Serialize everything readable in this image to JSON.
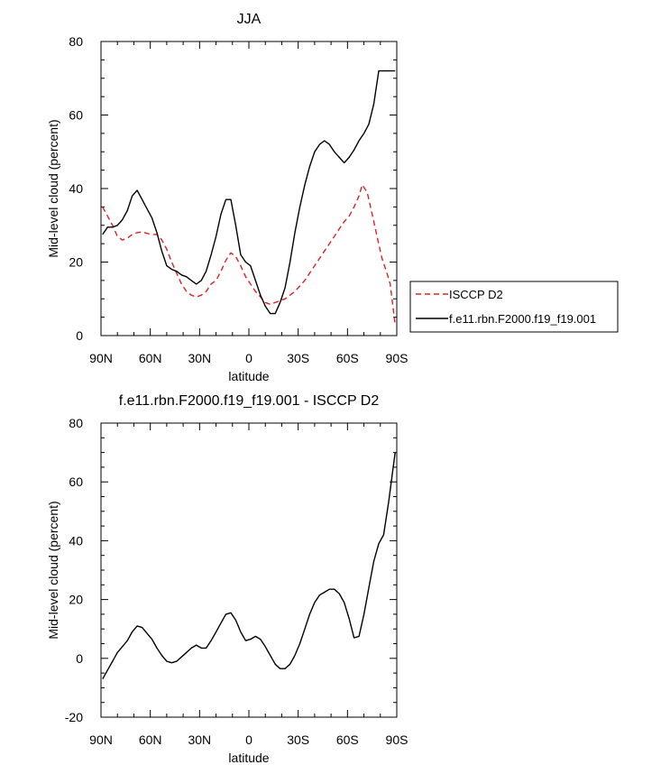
{
  "chart_data": [
    {
      "type": "line",
      "title": "JJA",
      "xlabel": "latitude",
      "ylabel": "Mid-level cloud (percent)",
      "xlim": [
        -90,
        90
      ],
      "ylim": [
        0,
        80
      ],
      "x_ticks": [
        -90,
        -60,
        -30,
        0,
        30,
        60,
        90
      ],
      "x_tick_labels": [
        "90N",
        "60N",
        "30N",
        "0",
        "30S",
        "60S",
        "90S"
      ],
      "y_ticks": [
        0,
        20,
        40,
        60,
        80
      ],
      "y_tick_labels": [
        "0",
        "20",
        "40",
        "60",
        "80"
      ],
      "legend_position": "right",
      "series": [
        {
          "name": "ISCCP D2",
          "color": "#e02020",
          "dash": "dashed",
          "x": [
            -89,
            -86,
            -83,
            -80,
            -77,
            -74,
            -71,
            -68,
            -65,
            -62,
            -59,
            -56,
            -53,
            -50,
            -47,
            -44,
            -41,
            -38,
            -35,
            -32,
            -29,
            -26,
            -23,
            -20,
            -17,
            -14,
            -11,
            -8,
            -5,
            -2,
            1,
            4,
            7,
            10,
            13,
            16,
            19,
            22,
            25,
            28,
            31,
            34,
            37,
            40,
            43,
            46,
            49,
            52,
            55,
            58,
            61,
            64,
            67,
            69,
            72,
            75,
            78,
            81,
            84,
            86,
            89
          ],
          "y": [
            35,
            32.5,
            30,
            27,
            26,
            26.5,
            27.5,
            28,
            28.2,
            27.8,
            27.5,
            27.5,
            26,
            23.5,
            20,
            17,
            14,
            12,
            11,
            10.5,
            11,
            12,
            14,
            15,
            17.5,
            20.5,
            22.5,
            21.5,
            19,
            16,
            14,
            12,
            10.5,
            9,
            8.5,
            9,
            9.5,
            10,
            11,
            12,
            13.5,
            15,
            17,
            19,
            21,
            23,
            25,
            27,
            29,
            31,
            32.5,
            35,
            38,
            41,
            39,
            33,
            27,
            21,
            17,
            14,
            3
          ]
        },
        {
          "name": "f.e11.rbn.F2000.f19_f19.001",
          "color": "#000000",
          "dash": "solid",
          "x": [
            -89,
            -86,
            -83,
            -80,
            -77,
            -74,
            -71,
            -68,
            -65,
            -62,
            -59,
            -56,
            -53,
            -50,
            -47,
            -44,
            -41,
            -38,
            -35,
            -32,
            -29,
            -26,
            -23,
            -20,
            -17,
            -14,
            -11,
            -8,
            -5,
            -2,
            1,
            4,
            7,
            10,
            13,
            16,
            19,
            22,
            25,
            28,
            31,
            34,
            37,
            40,
            43,
            46,
            49,
            52,
            55,
            58,
            61,
            64,
            67,
            70,
            73,
            76,
            79,
            82,
            85,
            89
          ],
          "y": [
            27.5,
            29.5,
            29.5,
            30,
            31.5,
            34,
            38,
            39.5,
            37,
            34.5,
            32,
            28,
            23,
            19,
            18,
            17.5,
            16.5,
            16,
            15,
            14,
            15,
            17.5,
            22,
            27,
            33,
            37,
            37,
            30,
            22,
            20,
            19,
            15,
            11,
            8,
            6,
            6,
            9,
            13,
            20,
            28,
            35,
            41,
            46,
            50,
            52,
            53,
            52,
            50,
            48.5,
            47,
            48.5,
            50.5,
            53,
            55,
            57.5,
            63,
            72,
            72,
            72,
            72
          ]
        }
      ]
    },
    {
      "type": "line",
      "title": "f.e11.rbn.F2000.f19_f19.001 - ISCCP D2",
      "xlabel": "latitude",
      "ylabel": "Mid-level cloud (percent)",
      "xlim": [
        -90,
        90
      ],
      "ylim": [
        -20,
        80
      ],
      "x_ticks": [
        -90,
        -60,
        -30,
        0,
        30,
        60,
        90
      ],
      "x_tick_labels": [
        "90N",
        "60N",
        "30N",
        "0",
        "30S",
        "60S",
        "90S"
      ],
      "y_ticks": [
        -20,
        0,
        20,
        40,
        60,
        80
      ],
      "y_tick_labels": [
        "-20",
        "0",
        "20",
        "40",
        "60",
        "80"
      ],
      "series": [
        {
          "color": "#000000",
          "dash": "solid",
          "x": [
            -89,
            -86,
            -83,
            -80,
            -77,
            -74,
            -71,
            -68,
            -65,
            -62,
            -59,
            -56,
            -53,
            -50,
            -47,
            -44,
            -41,
            -38,
            -35,
            -32,
            -29,
            -26,
            -23,
            -20,
            -17,
            -14,
            -11,
            -8,
            -5,
            -2,
            1,
            4,
            7,
            10,
            13,
            16,
            19,
            22,
            25,
            28,
            31,
            34,
            37,
            40,
            43,
            46,
            49,
            52,
            55,
            58,
            61,
            64,
            67,
            70,
            73,
            76,
            79,
            82,
            85,
            89
          ],
          "y": [
            -7,
            -4,
            -1,
            2,
            4,
            6,
            9,
            11,
            10.5,
            8.5,
            6.5,
            3.5,
            1,
            -1,
            -1.5,
            -1,
            0.5,
            2,
            3.5,
            4.5,
            3.5,
            3.5,
            6,
            9,
            12,
            15,
            15.5,
            13,
            9,
            6,
            6.5,
            7.5,
            6.5,
            4,
            1,
            -2,
            -3.5,
            -3.5,
            -2,
            1,
            5,
            10,
            15,
            19,
            21.5,
            22.5,
            23.5,
            23.5,
            22,
            19,
            13.5,
            7,
            7.5,
            15,
            24,
            33,
            39,
            42,
            53,
            70
          ]
        }
      ]
    }
  ]
}
